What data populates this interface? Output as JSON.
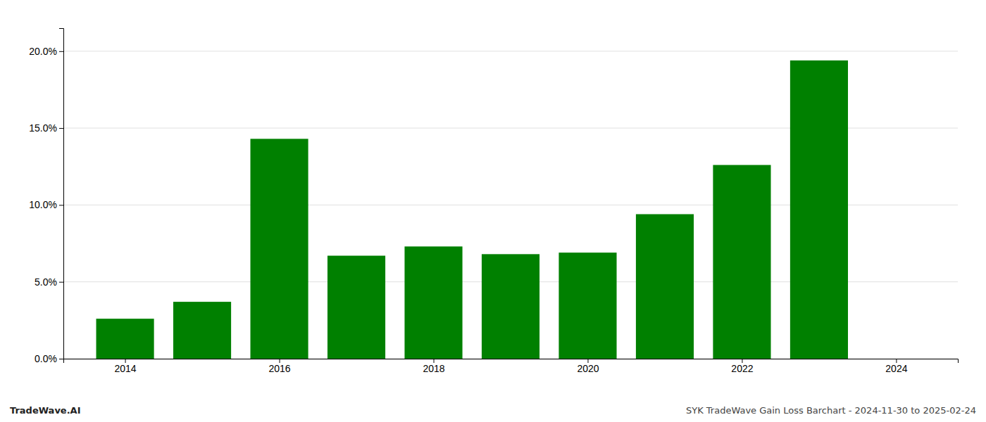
{
  "chart_data": {
    "type": "bar",
    "x": [
      2014,
      2015,
      2016,
      2017,
      2018,
      2019,
      2020,
      2021,
      2022,
      2023
    ],
    "values": [
      0.026,
      0.037,
      0.143,
      0.067,
      0.073,
      0.068,
      0.069,
      0.094,
      0.126,
      0.194
    ],
    "color": "#008000",
    "xlim": [
      2013.2,
      2024.8
    ],
    "xticks": [
      2014,
      2016,
      2018,
      2020,
      2022,
      2024
    ],
    "ylim": [
      0,
      0.215
    ],
    "yticks": [
      {
        "value": 0.0,
        "label": "0.0%"
      },
      {
        "value": 0.05,
        "label": "5.0%"
      },
      {
        "value": 0.1,
        "label": "10.0%"
      },
      {
        "value": 0.15,
        "label": "15.0%"
      },
      {
        "value": 0.2,
        "label": "20.0%"
      }
    ],
    "grid": true,
    "annotations": [
      "TradeWave.AI",
      "SYK TradeWave Gain Loss Barchart - 2024-11-30 to 2025-02-24"
    ]
  }
}
